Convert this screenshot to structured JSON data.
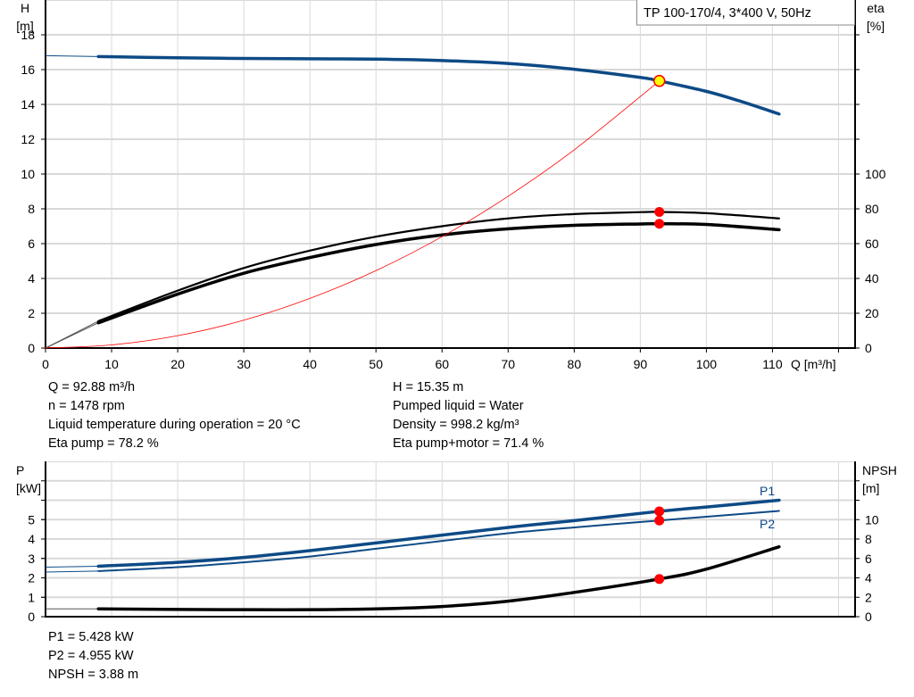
{
  "legend_box": "TP 100-170/4, 3*400 V, 50Hz",
  "colors": {
    "blue": "#0d4a86",
    "black": "#000000",
    "red": "#ff0000",
    "grid": "#d9d9d9",
    "marker_fill": "#ffff00"
  },
  "chart_data": [
    {
      "type": "line",
      "title": "",
      "xlabel": "Q [m³/h]",
      "ylabel": "H\n[m]",
      "ylabel_lines": [
        "H",
        "[m]"
      ],
      "y2label_lines": [
        "eta",
        "[%]"
      ],
      "xlim": [
        0,
        122.5
      ],
      "ylim": [
        0,
        20
      ],
      "y2lim": [
        0,
        200
      ],
      "x_ticks": [
        "0",
        "10",
        "20",
        "30",
        "40",
        "50",
        "60",
        "70",
        "80",
        "90",
        "100",
        "110"
      ],
      "y_ticks": [
        "0",
        "2",
        "4",
        "6",
        "8",
        "10",
        "12",
        "14",
        "16",
        "18"
      ],
      "y2_ticks": [
        "0",
        "20",
        "40",
        "60",
        "80",
        "100"
      ],
      "grid": true,
      "series": [
        {
          "axis": "left",
          "color": "#0d4a86",
          "x": [
            0,
            8,
            20,
            30,
            40,
            50,
            60,
            70,
            80,
            90,
            92.88,
            100,
            105,
            111
          ],
          "y": [
            16.8,
            16.75,
            16.68,
            16.64,
            16.62,
            16.6,
            16.52,
            16.35,
            16.02,
            15.55,
            15.35,
            14.75,
            14.2,
            13.45
          ]
        },
        {
          "axis": "right",
          "color": "#000000",
          "x": [
            0,
            8,
            20,
            30,
            40,
            50,
            60,
            70,
            80,
            90,
            92.88,
            100,
            111
          ],
          "y": [
            0,
            15.5,
            33,
            46,
            56,
            64,
            70,
            74.5,
            77,
            78.1,
            78.2,
            77.5,
            74.5
          ]
        },
        {
          "axis": "right",
          "color": "#000000",
          "x": [
            0,
            8,
            20,
            30,
            40,
            50,
            60,
            70,
            80,
            90,
            92.88,
            100,
            111
          ],
          "y": [
            0,
            14.5,
            31,
            43,
            52,
            59.5,
            65,
            68.5,
            70.5,
            71.3,
            71.4,
            71,
            68
          ]
        },
        {
          "axis": "left",
          "color": "#ff0000",
          "x": [
            0,
            10,
            20,
            30,
            40,
            50,
            60,
            70,
            80,
            92.88
          ],
          "y": [
            0,
            0.18,
            0.71,
            1.6,
            2.85,
            4.45,
            6.4,
            8.72,
            11.39,
            15.35
          ]
        }
      ],
      "operating_point": {
        "Q": 92.88,
        "H": 15.35,
        "eta_pump": 78.2,
        "eta_pump_motor": 71.4
      }
    },
    {
      "type": "line",
      "title": "",
      "ylabel_lines": [
        "P",
        "[kW]"
      ],
      "y2label_lines": [
        "NPSH",
        "[m]"
      ],
      "xlim": [
        0,
        122.5
      ],
      "ylim": [
        0,
        8
      ],
      "y2lim": [
        0,
        16
      ],
      "y_ticks": [
        "0",
        "1",
        "2",
        "3",
        "4",
        "5"
      ],
      "y2_ticks": [
        "0",
        "2",
        "4",
        "6",
        "8",
        "10"
      ],
      "grid": true,
      "series": [
        {
          "name": "P1",
          "axis": "left",
          "color": "#0d4a86",
          "x": [
            0,
            8,
            20,
            30,
            40,
            50,
            60,
            70,
            80,
            92.88,
            100,
            111
          ],
          "y": [
            2.55,
            2.6,
            2.8,
            3.05,
            3.4,
            3.8,
            4.2,
            4.6,
            4.95,
            5.428,
            5.65,
            6.0
          ]
        },
        {
          "name": "P2",
          "axis": "left",
          "color": "#0d4a86",
          "x": [
            0,
            8,
            20,
            30,
            40,
            50,
            60,
            70,
            80,
            92.88,
            100,
            111
          ],
          "y": [
            2.3,
            2.35,
            2.55,
            2.8,
            3.1,
            3.5,
            3.9,
            4.3,
            4.6,
            4.955,
            5.15,
            5.45
          ]
        },
        {
          "axis": "right",
          "color": "#000000",
          "x": [
            0,
            8,
            20,
            30,
            40,
            50,
            60,
            70,
            80,
            92.88,
            100,
            111
          ],
          "y": [
            0.8,
            0.8,
            0.75,
            0.72,
            0.72,
            0.8,
            1.05,
            1.6,
            2.5,
            3.88,
            4.9,
            7.2
          ]
        }
      ],
      "operating_point": {
        "Q": 92.88,
        "P1": 5.428,
        "P2": 4.955,
        "NPSH": 3.88
      }
    }
  ],
  "info_top_left": [
    "Q = 92.88 m³/h",
    "n = 1478 rpm",
    "Liquid temperature during operation = 20 °C",
    "Eta pump = 78.2 %"
  ],
  "info_top_right": [
    "H = 15.35 m",
    "Pumped liquid = Water",
    "Density = 998.2 kg/m³",
    "Eta pump+motor = 71.4 %"
  ],
  "info_bottom": [
    "P1 = 5.428 kW",
    "P2 = 4.955 kW",
    "NPSH = 3.88 m"
  ]
}
